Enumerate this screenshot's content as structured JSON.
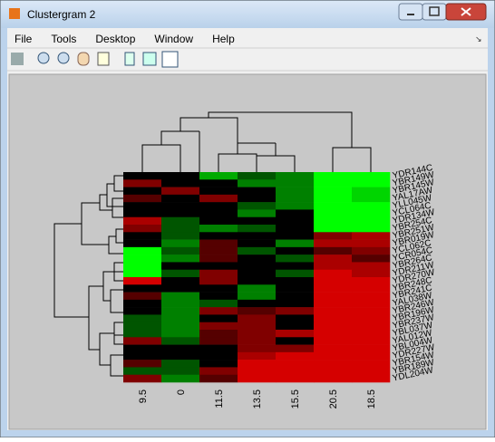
{
  "window": {
    "title": "Clustergram 2"
  },
  "menu": [
    "File",
    "Tools",
    "Desktop",
    "Window",
    "Help"
  ],
  "chart_data": {
    "type": "heatmap",
    "columns": [
      "9.5",
      "0",
      "11.5",
      "13.5",
      "15.5",
      "20.5",
      "18.5"
    ],
    "rows": [
      "YDR144C",
      "YBR149W",
      "YBR145W",
      "YAL17AW",
      "YLL045W",
      "YCL064C",
      "YDR134W",
      "YBR254C",
      "YBR251W",
      "YBR019W",
      "YCL062C",
      "YCR054C",
      "YBR264C",
      "YDR211W",
      "YDR270W",
      "YBR248C",
      "YBR241C",
      "YAL038W",
      "YBR246W",
      "YBR196W",
      "YBR237W",
      "YBL037W",
      "YAL012W",
      "YBL004W",
      "YDR227W",
      "YBR154W",
      "YBR189W",
      "YDL204W"
    ],
    "colors": {
      "low": "#00ff00",
      "mid": "#000000",
      "high": "#ff0000"
    },
    "values": [
      [
        0,
        0,
        -2,
        -1,
        -1.5,
        -3,
        -3
      ],
      [
        1.5,
        0,
        0,
        -1.5,
        -1.5,
        -3,
        -3
      ],
      [
        0,
        1.5,
        0,
        0,
        -1.5,
        -3,
        -2.5
      ],
      [
        1,
        0,
        1.5,
        0,
        -1.5,
        -3,
        -2.5
      ],
      [
        0,
        0,
        0,
        -1,
        -1.5,
        -3,
        -3
      ],
      [
        0,
        0,
        0,
        -1.5,
        0,
        -3,
        -3
      ],
      [
        2,
        -1,
        0,
        0,
        0,
        -3,
        -3
      ],
      [
        1.5,
        -1,
        -1.5,
        -1,
        0,
        -3,
        -3
      ],
      [
        0,
        -1,
        0,
        0,
        0,
        1.5,
        2
      ],
      [
        0,
        -1.5,
        1,
        0,
        -1.5,
        2,
        2
      ],
      [
        -3,
        -1,
        1,
        -1,
        0,
        1,
        1.5
      ],
      [
        -3,
        -1.5,
        1,
        0,
        -1,
        2,
        1
      ],
      [
        -3,
        0,
        0,
        0,
        0,
        2,
        2
      ],
      [
        -3,
        -1,
        1.5,
        0,
        -1,
        2.5,
        2
      ],
      [
        2.5,
        0,
        1.5,
        0,
        0,
        2.5,
        2.5
      ],
      [
        0,
        0,
        0,
        -1.5,
        0,
        2.5,
        2.5
      ],
      [
        1,
        -1.5,
        0,
        -1.5,
        0,
        2.5,
        2.5
      ],
      [
        0,
        -1.5,
        -1,
        0,
        0,
        2.5,
        2.5
      ],
      [
        0,
        -1.5,
        1.5,
        1,
        1.5,
        2.5,
        2.5
      ],
      [
        -1,
        -1.5,
        0,
        1.5,
        0,
        2.5,
        2.5
      ],
      [
        -1,
        -1.5,
        1.5,
        1.5,
        0,
        2.5,
        2.5
      ],
      [
        -1,
        -1.5,
        1,
        1.5,
        2,
        2.5,
        2.5
      ],
      [
        1.5,
        -1,
        1,
        1.5,
        0,
        2.5,
        2.5
      ],
      [
        0,
        0,
        0,
        1.5,
        1.5,
        2.5,
        2.5
      ],
      [
        0,
        0,
        0,
        2,
        2.5,
        2.5,
        2.5
      ],
      [
        1,
        -1,
        0,
        2.5,
        2.5,
        2.5,
        2.5
      ],
      [
        -1,
        -1,
        1.5,
        2.5,
        2.5,
        2.5,
        2.5
      ],
      [
        1.5,
        -1.5,
        1,
        2.5,
        2.5,
        2.5,
        2.5
      ]
    ]
  }
}
